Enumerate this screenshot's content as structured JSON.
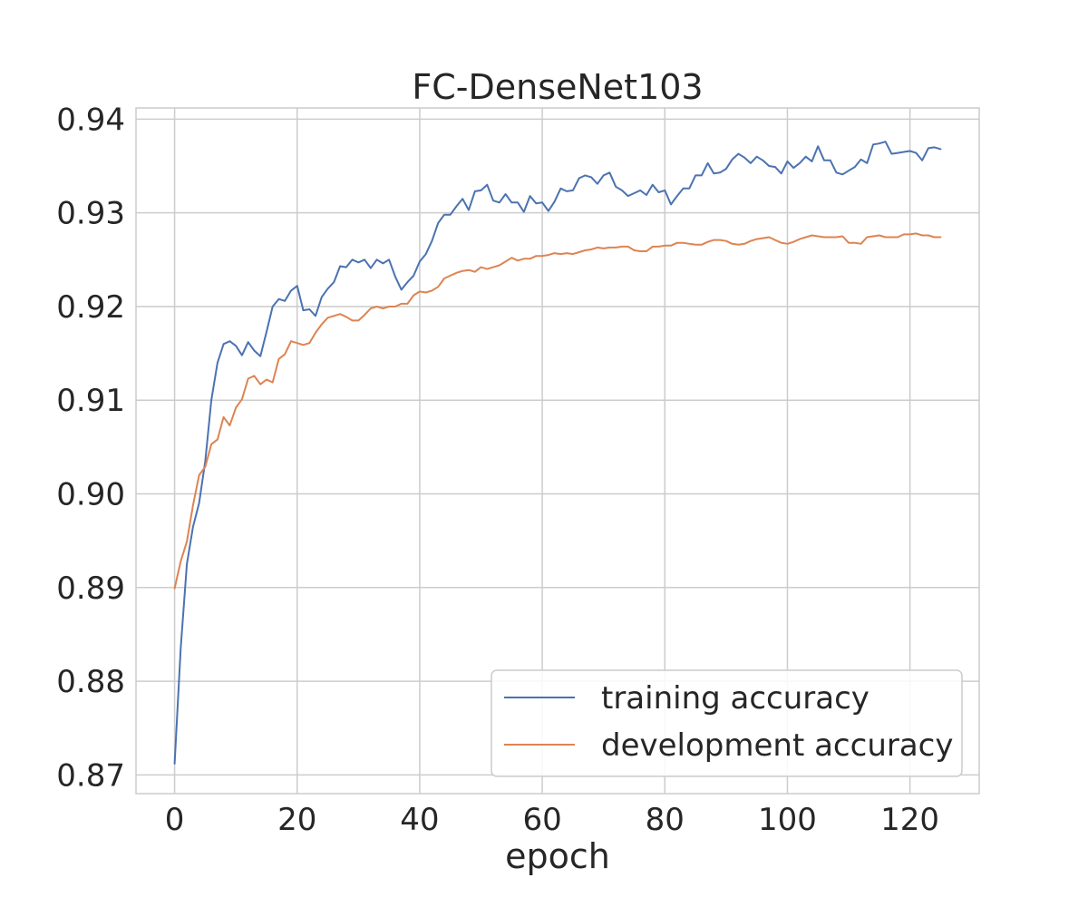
{
  "chart_data": {
    "type": "line",
    "title": "FC-DenseNet103",
    "xlabel": "epoch",
    "ylabel": "",
    "xlim": [
      -6.3,
      131.3
    ],
    "ylim": [
      0.868,
      0.9412
    ],
    "xticks": [
      0,
      20,
      40,
      60,
      80,
      100,
      120
    ],
    "xtick_labels": [
      "0",
      "20",
      "40",
      "60",
      "80",
      "100",
      "120"
    ],
    "yticks": [
      0.87,
      0.88,
      0.89,
      0.9,
      0.91,
      0.92,
      0.93,
      0.94
    ],
    "ytick_labels": [
      "0.87",
      "0.88",
      "0.89",
      "0.90",
      "0.91",
      "0.92",
      "0.93",
      "0.94"
    ],
    "grid": true,
    "legend_position": "lower-right",
    "series": [
      {
        "name": "training accuracy",
        "color": "#4c72b0",
        "x": [
          0,
          1,
          2,
          3,
          4,
          5,
          6,
          7,
          8,
          9,
          10,
          11,
          12,
          13,
          14,
          15,
          16,
          17,
          18,
          19,
          20,
          21,
          22,
          23,
          24,
          25,
          26,
          27,
          28,
          29,
          30,
          31,
          32,
          33,
          34,
          35,
          36,
          37,
          38,
          39,
          40,
          41,
          42,
          43,
          44,
          45,
          46,
          47,
          48,
          49,
          50,
          51,
          52,
          53,
          54,
          55,
          56,
          57,
          58,
          59,
          60,
          61,
          62,
          63,
          64,
          65,
          66,
          67,
          68,
          69,
          70,
          71,
          72,
          73,
          74,
          75,
          76,
          77,
          78,
          79,
          80,
          81,
          82,
          83,
          84,
          85,
          86,
          87,
          88,
          89,
          90,
          91,
          92,
          93,
          94,
          95,
          96,
          97,
          98,
          99,
          100,
          101,
          102,
          103,
          104,
          105,
          106,
          107,
          108,
          109,
          110,
          111,
          112,
          113,
          114,
          115,
          116,
          117,
          118,
          119,
          120,
          121,
          122,
          123,
          124,
          125
        ],
        "y": [
          0.8712,
          0.8835,
          0.8925,
          0.8965,
          0.899,
          0.9035,
          0.91,
          0.914,
          0.916,
          0.9163,
          0.9158,
          0.9148,
          0.9162,
          0.9153,
          0.9147,
          0.9173,
          0.92,
          0.9208,
          0.9206,
          0.9217,
          0.9222,
          0.9196,
          0.9197,
          0.919,
          0.921,
          0.9219,
          0.9226,
          0.9243,
          0.9242,
          0.925,
          0.9247,
          0.925,
          0.9241,
          0.925,
          0.9246,
          0.925,
          0.9232,
          0.9218,
          0.9226,
          0.9233,
          0.9248,
          0.9256,
          0.927,
          0.9289,
          0.9298,
          0.9298,
          0.9307,
          0.9315,
          0.9303,
          0.9323,
          0.9324,
          0.933,
          0.9313,
          0.9311,
          0.932,
          0.9311,
          0.9311,
          0.9301,
          0.9318,
          0.931,
          0.9311,
          0.9302,
          0.9312,
          0.9326,
          0.9323,
          0.9324,
          0.9337,
          0.934,
          0.9338,
          0.9331,
          0.934,
          0.9343,
          0.9328,
          0.9324,
          0.9318,
          0.9321,
          0.9324,
          0.9319,
          0.933,
          0.9322,
          0.9324,
          0.9309,
          0.9318,
          0.9326,
          0.9326,
          0.934,
          0.934,
          0.9353,
          0.9342,
          0.9343,
          0.9347,
          0.9357,
          0.9363,
          0.9359,
          0.9353,
          0.936,
          0.9356,
          0.935,
          0.9349,
          0.9342,
          0.9355,
          0.9348,
          0.9353,
          0.936,
          0.9355,
          0.9371,
          0.9356,
          0.9356,
          0.9343,
          0.9341,
          0.9345,
          0.9349,
          0.9357,
          0.9353,
          0.9373,
          0.9374,
          0.9376,
          0.9363,
          0.9364,
          0.9365,
          0.9366,
          0.9364,
          0.9356,
          0.9369,
          0.937,
          0.9368
        ]
      },
      {
        "name": "development accuracy",
        "color": "#dd8452",
        "x": [
          0,
          1,
          2,
          3,
          4,
          5,
          6,
          7,
          8,
          9,
          10,
          11,
          12,
          13,
          14,
          15,
          16,
          17,
          18,
          19,
          20,
          21,
          22,
          23,
          24,
          25,
          26,
          27,
          28,
          29,
          30,
          31,
          32,
          33,
          34,
          35,
          36,
          37,
          38,
          39,
          40,
          41,
          42,
          43,
          44,
          45,
          46,
          47,
          48,
          49,
          50,
          51,
          52,
          53,
          54,
          55,
          56,
          57,
          58,
          59,
          60,
          61,
          62,
          63,
          64,
          65,
          66,
          67,
          68,
          69,
          70,
          71,
          72,
          73,
          74,
          75,
          76,
          77,
          78,
          79,
          80,
          81,
          82,
          83,
          84,
          85,
          86,
          87,
          88,
          89,
          90,
          91,
          92,
          93,
          94,
          95,
          96,
          97,
          98,
          99,
          100,
          101,
          102,
          103,
          104,
          105,
          106,
          107,
          108,
          109,
          110,
          111,
          112,
          113,
          114,
          115,
          116,
          117,
          118,
          119,
          120,
          121,
          122,
          123,
          124,
          125
        ],
        "y": [
          0.8899,
          0.8928,
          0.8949,
          0.8988,
          0.902,
          0.9029,
          0.9053,
          0.9058,
          0.9082,
          0.9073,
          0.9092,
          0.9101,
          0.9123,
          0.9126,
          0.9117,
          0.9122,
          0.9119,
          0.9144,
          0.9149,
          0.9163,
          0.9161,
          0.9159,
          0.9161,
          0.9172,
          0.9181,
          0.9188,
          0.919,
          0.9192,
          0.9189,
          0.9185,
          0.9185,
          0.9191,
          0.9198,
          0.92,
          0.9198,
          0.92,
          0.92,
          0.9203,
          0.9203,
          0.9212,
          0.9216,
          0.9215,
          0.9217,
          0.9221,
          0.923,
          0.9233,
          0.9236,
          0.9238,
          0.9239,
          0.9237,
          0.9242,
          0.924,
          0.9242,
          0.9244,
          0.9248,
          0.9252,
          0.9249,
          0.9251,
          0.9251,
          0.9254,
          0.9254,
          0.9255,
          0.9257,
          0.9256,
          0.9257,
          0.9256,
          0.9258,
          0.926,
          0.9261,
          0.9263,
          0.9262,
          0.9263,
          0.9263,
          0.9264,
          0.9264,
          0.926,
          0.9259,
          0.9259,
          0.9264,
          0.9264,
          0.9265,
          0.9265,
          0.9268,
          0.9268,
          0.9267,
          0.9266,
          0.9266,
          0.9269,
          0.9271,
          0.9271,
          0.927,
          0.9267,
          0.9266,
          0.9267,
          0.927,
          0.9272,
          0.9273,
          0.9274,
          0.9271,
          0.9268,
          0.9267,
          0.9269,
          0.9272,
          0.9274,
          0.9276,
          0.9275,
          0.9274,
          0.9274,
          0.9274,
          0.9275,
          0.9268,
          0.9268,
          0.9267,
          0.9274,
          0.9275,
          0.9276,
          0.9274,
          0.9274,
          0.9274,
          0.9277,
          0.9277,
          0.9278,
          0.9276,
          0.9276,
          0.9274,
          0.9274
        ]
      }
    ]
  }
}
